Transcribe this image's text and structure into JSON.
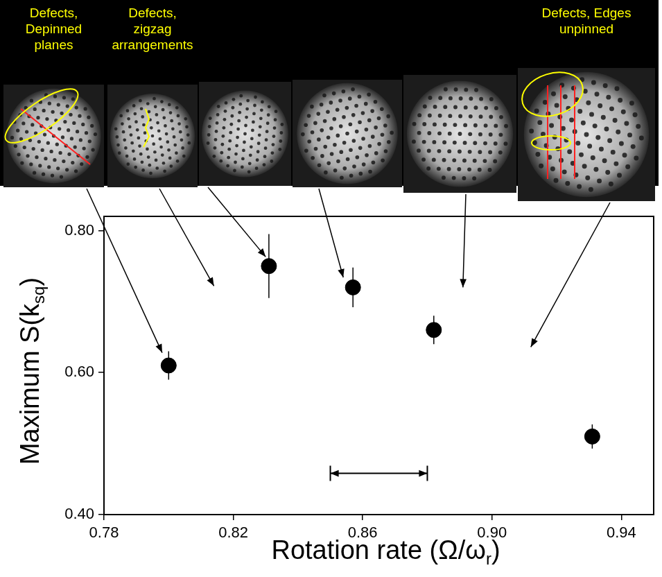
{
  "chart_data": {
    "type": "scatter",
    "x_label": [
      "Rotation rate (Ω/ω",
      "r",
      ")"
    ],
    "y_label": [
      "Maximum S(k",
      "sq",
      ")"
    ],
    "x": [
      0.8,
      0.831,
      0.857,
      0.882,
      0.931
    ],
    "values": [
      0.61,
      0.75,
      0.72,
      0.66,
      0.51
    ],
    "errors": [
      0.02,
      0.045,
      0.028,
      0.02,
      0.017
    ],
    "color": "#000000",
    "marker": "circle",
    "xlim": [
      0.78,
      0.95
    ],
    "ylim": [
      0.4,
      0.82
    ],
    "xticks": [
      {
        "value": 0.78,
        "label": "0.78"
      },
      {
        "value": 0.82,
        "label": "0.82"
      },
      {
        "value": 0.86,
        "label": "0.86"
      },
      {
        "value": 0.9,
        "label": "0.90"
      },
      {
        "value": 0.94,
        "label": "0.94"
      }
    ],
    "yticks": [
      {
        "value": 0.4,
        "label": "0.40"
      },
      {
        "value": 0.6,
        "label": "0.60"
      },
      {
        "value": 0.8,
        "label": "0.80"
      }
    ],
    "grid": false,
    "range_arrow": {
      "x": [
        0.85,
        0.88
      ],
      "y": 0.458
    },
    "panels": [
      {
        "label": "Defects, Depinned planes",
        "arrow_to": [
          0.798,
          0.628
        ]
      },
      {
        "label": "Defects, zigzag arrangements",
        "arrow_to": [
          0.814,
          0.722
        ]
      },
      {
        "arrow_to": [
          0.83,
          0.763
        ]
      },
      {
        "arrow_to": [
          0.854,
          0.734
        ]
      },
      {
        "arrow_to": [
          0.891,
          0.72
        ]
      },
      {
        "label": "Defects, Edges unpinned",
        "arrow_to": [
          0.912,
          0.636
        ]
      }
    ]
  }
}
